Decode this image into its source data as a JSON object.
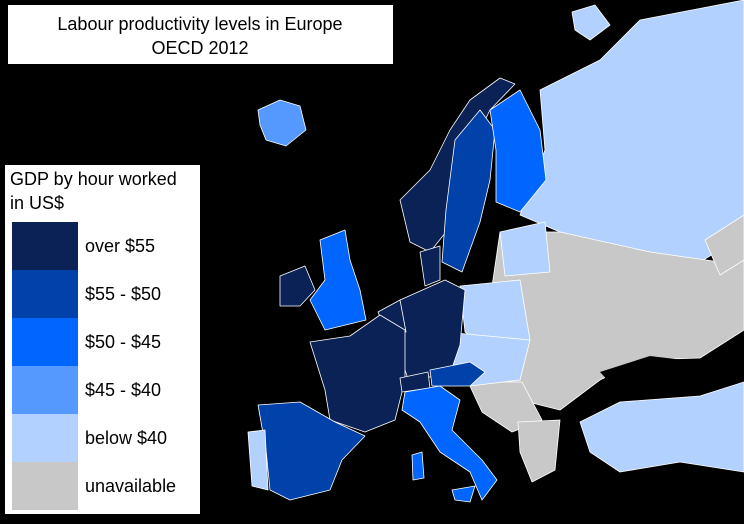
{
  "title": {
    "line1": "Labour productivity levels in Europe",
    "line2": "OECD 2012"
  },
  "legend": {
    "title_line1": "GDP by hour worked",
    "title_line2": "in US$",
    "items": [
      {
        "label": "over $55",
        "color": "#0b2256"
      },
      {
        "label": "$55 - $50",
        "color": "#0042aa"
      },
      {
        "label": "$50 - $45",
        "color": "#0066ff"
      },
      {
        "label": "$45 - $40",
        "color": "#5599ff"
      },
      {
        "label": "below $40",
        "color": "#b3d1ff"
      },
      {
        "label": "unavailable",
        "color": "#c8c8c8"
      }
    ]
  }
}
